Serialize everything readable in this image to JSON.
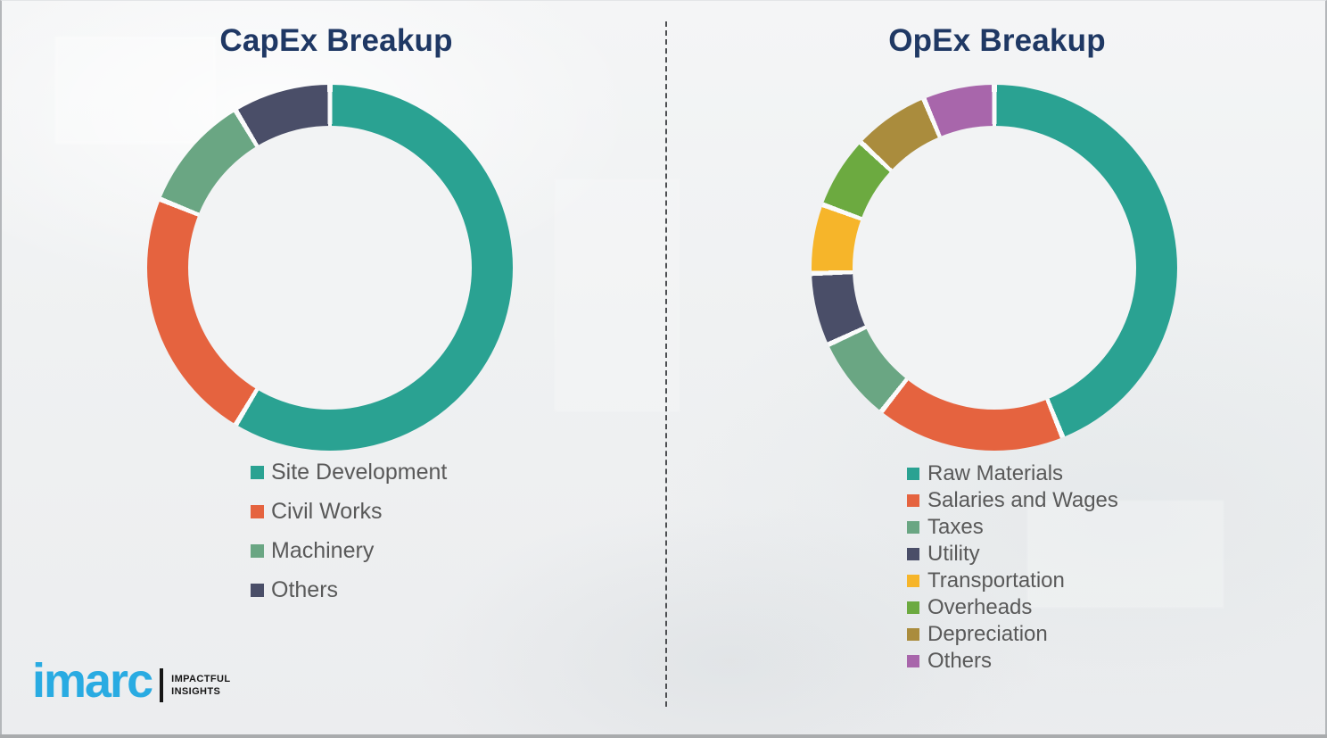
{
  "palette": {
    "title_color": "#1F3864",
    "legend_text_color": "#595959",
    "divider_color": "#4d4f52",
    "background_color": "#eff1f2",
    "segment_gap_color": "#fafbfb",
    "bottom_bar_color": "#a9abad"
  },
  "chart_data": [
    {
      "type": "pie",
      "variant": "donut",
      "title": "CapEx Breakup",
      "categories": [
        "Site Development",
        "Civil Works",
        "Machinery",
        "Others"
      ],
      "values": [
        58.6,
        22.5,
        10.3,
        8.6
      ],
      "values_unit": "percent",
      "values_estimated_from_arc_angles": true,
      "colors": [
        "#2AA292",
        "#E5633F",
        "#6AA683",
        "#4A4E68"
      ],
      "start_angle_deg": 0,
      "direction": "clockwise",
      "legend_position": "below-chart-left",
      "data_labels_shown": false
    },
    {
      "type": "pie",
      "variant": "donut",
      "title": "OpEx Breakup",
      "categories": [
        "Raw Materials",
        "Salaries and Wages",
        "Taxes",
        "Utility",
        "Transportation",
        "Overheads",
        "Depreciation",
        "Others"
      ],
      "values": [
        43.9,
        16.7,
        7.5,
        6.4,
        6.1,
        6.4,
        6.7,
        6.3
      ],
      "values_unit": "percent",
      "values_estimated_from_arc_angles": true,
      "colors": [
        "#2AA292",
        "#E5633F",
        "#6AA683",
        "#4A4E68",
        "#F6B52A",
        "#6CAA40",
        "#AA8C3D",
        "#A866AB"
      ],
      "start_angle_deg": 0,
      "direction": "clockwise",
      "legend_position": "below-chart-left",
      "data_labels_shown": false
    }
  ],
  "logo": {
    "brand": "imarc",
    "brand_color": "#29ABE2",
    "tagline_line1": "IMPACTFUL",
    "tagline_line2": "INSIGHTS"
  }
}
